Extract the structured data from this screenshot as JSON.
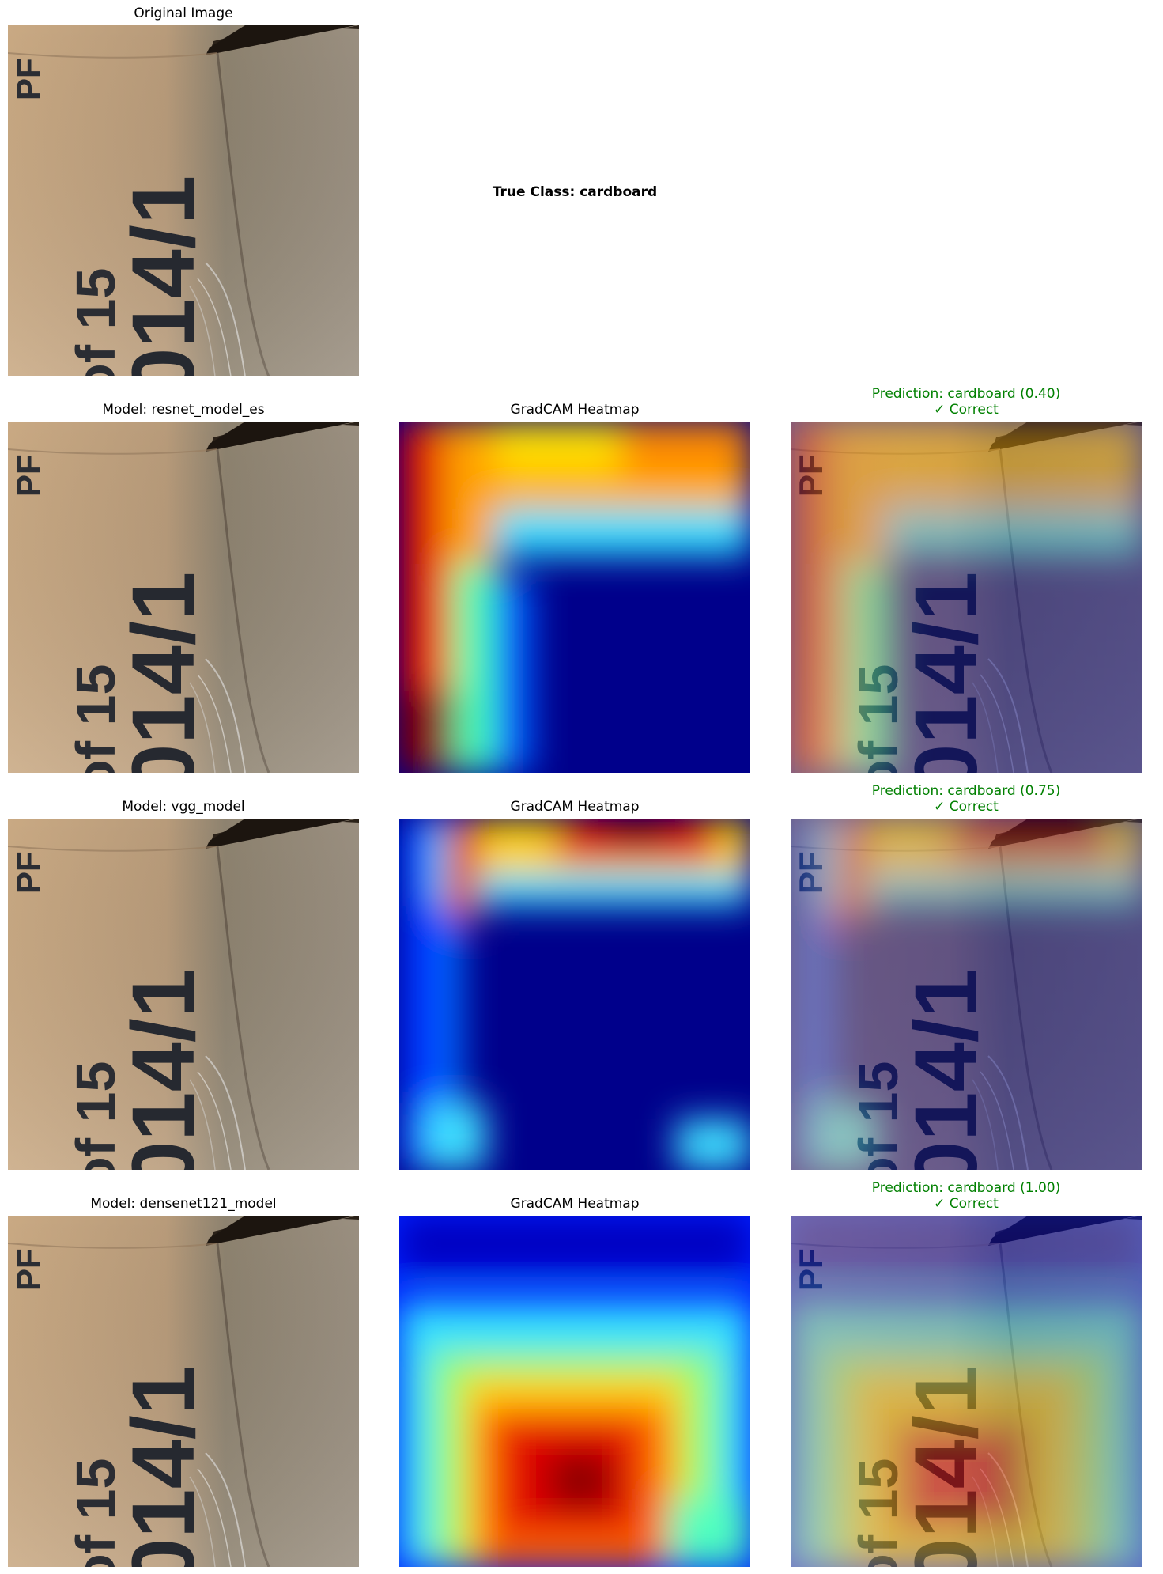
{
  "original": {
    "title": "Original Image"
  },
  "true_class": {
    "label": "True Class: cardboard"
  },
  "box_text": {
    "left": "PF",
    "of": "of 15",
    "code": "014/1"
  },
  "rows": [
    {
      "model_title": "Model: resnet_model_es",
      "heatmap_title": "GradCAM Heatmap",
      "pred_line1": "Prediction: cardboard (0.40)",
      "pred_line2": "✓ Correct"
    },
    {
      "model_title": "Model: vgg_model",
      "heatmap_title": "GradCAM Heatmap",
      "pred_line1": "Prediction: cardboard (0.75)",
      "pred_line2": "✓ Correct"
    },
    {
      "model_title": "Model: densenet121_model",
      "heatmap_title": "GradCAM Heatmap",
      "pred_line1": "Prediction: cardboard (1.00)",
      "pred_line2": "✓ Correct"
    }
  ],
  "colors": {
    "correct": "#008000",
    "cardboard": "#c4a684",
    "heatmap_low": "#00008b",
    "heatmap_high": "#8b0000"
  }
}
